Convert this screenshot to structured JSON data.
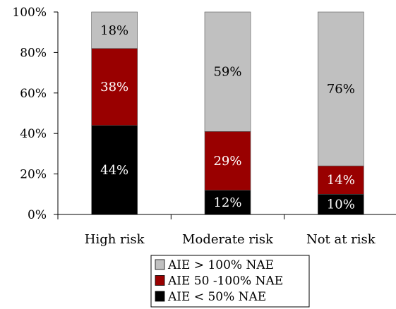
{
  "chart_data": {
    "type": "bar",
    "stacked": true,
    "percent": true,
    "categories": [
      "High risk",
      "Moderate risk",
      "Not at risk"
    ],
    "series": [
      {
        "name": "AIE < 50% NAE",
        "values": [
          44,
          12,
          10
        ],
        "labels": [
          "44%",
          "12%",
          "10%"
        ],
        "color": "#000000",
        "label_color": "#ffffff"
      },
      {
        "name": "AIE 50 -100% NAE",
        "values": [
          38,
          29,
          14
        ],
        "labels": [
          "38%",
          "29%",
          "14%"
        ],
        "color": "#990000",
        "label_color": "#ffffff"
      },
      {
        "name": "AIE > 100% NAE",
        "values": [
          18,
          59,
          76
        ],
        "labels": [
          "18%",
          "59%",
          "76%"
        ],
        "color": "#c0c0c0",
        "label_color": "#000000"
      }
    ],
    "legend_order": [
      2,
      1,
      0
    ],
    "yticks": [
      "0%",
      "20%",
      "40%",
      "60%",
      "80%",
      "100%"
    ],
    "ylim": [
      0,
      100
    ],
    "grid": false,
    "legend_position": "bottom"
  }
}
